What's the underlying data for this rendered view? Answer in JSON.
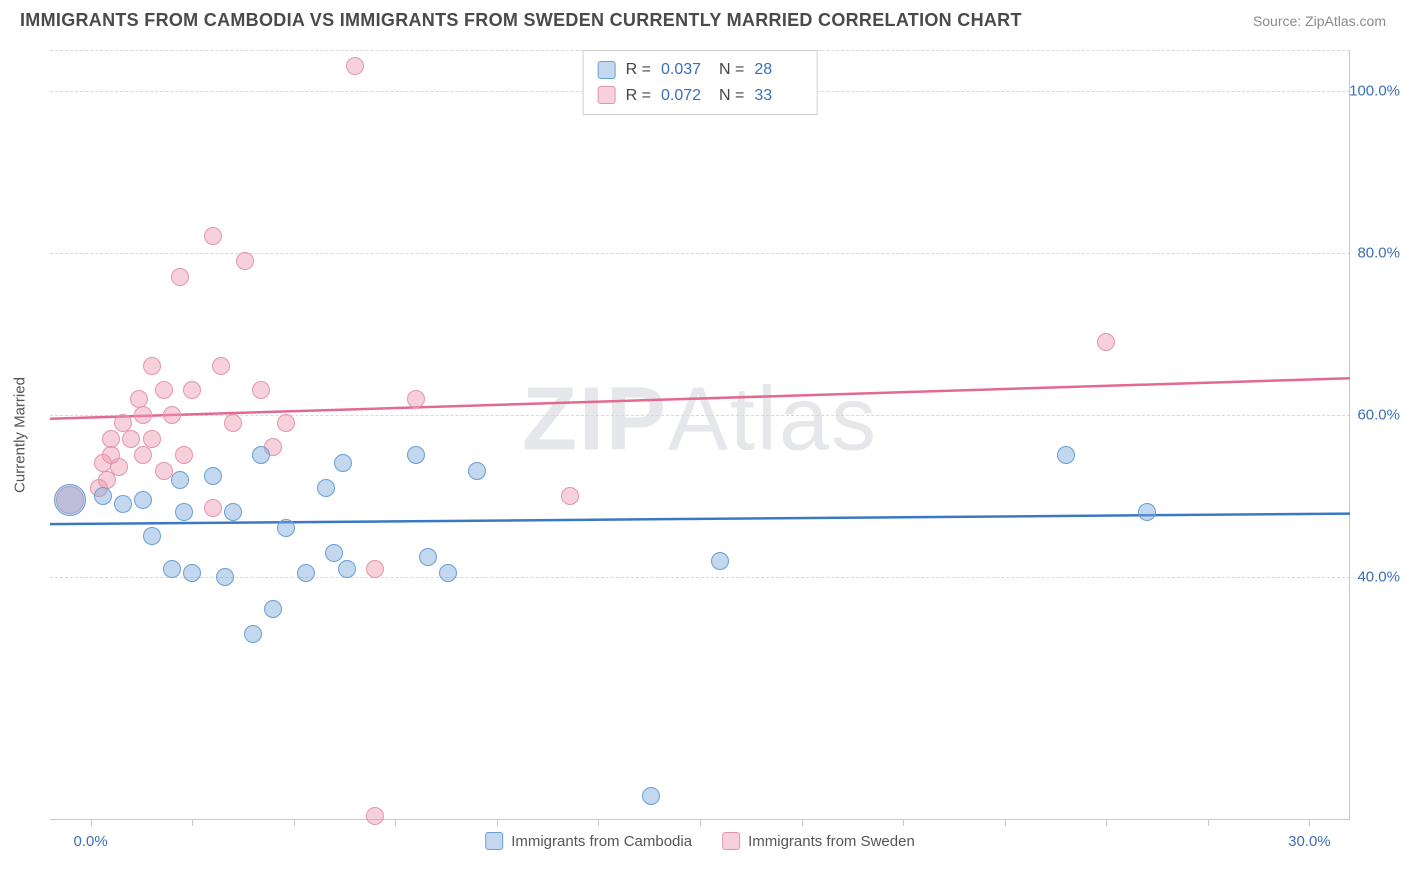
{
  "title": "IMMIGRANTS FROM CAMBODIA VS IMMIGRANTS FROM SWEDEN CURRENTLY MARRIED CORRELATION CHART",
  "source": "Source: ZipAtlas.com",
  "watermark": {
    "bold": "ZIP",
    "rest": "Atlas"
  },
  "y_axis": {
    "label": "Currently Married",
    "min": 10,
    "max": 105,
    "ticks": [
      {
        "value": 100,
        "label": "100.0%"
      },
      {
        "value": 80,
        "label": "80.0%"
      },
      {
        "value": 60,
        "label": "60.0%"
      },
      {
        "value": 40,
        "label": "40.0%"
      }
    ],
    "gridlines": [
      105,
      100,
      80,
      60,
      40
    ]
  },
  "x_axis": {
    "min": -1,
    "max": 31,
    "ticks": [
      {
        "value": 0,
        "label": "0.0%"
      },
      {
        "value": 30,
        "label": "30.0%"
      }
    ],
    "minor_ticks": [
      0,
      2.5,
      5,
      7.5,
      10,
      12.5,
      15,
      17.5,
      20,
      22.5,
      25,
      27.5,
      30
    ]
  },
  "series": {
    "cambodia": {
      "label": "Immigrants from Cambodia",
      "fill": "rgba(123,167,217,0.45)",
      "stroke": "#6a9fd4",
      "trend_color": "#3b78c4",
      "R": "0.037",
      "N": "28",
      "marker_r": 9,
      "trend": {
        "y_at_xmin": 46.5,
        "y_at_xmax": 47.8
      },
      "points": [
        {
          "x": -0.5,
          "y": 49.5,
          "r": 16
        },
        {
          "x": 0.3,
          "y": 50
        },
        {
          "x": 0.8,
          "y": 49
        },
        {
          "x": 1.3,
          "y": 49.5
        },
        {
          "x": 1.5,
          "y": 45
        },
        {
          "x": 2.0,
          "y": 41
        },
        {
          "x": 2.5,
          "y": 40.5
        },
        {
          "x": 2.3,
          "y": 48
        },
        {
          "x": 2.2,
          "y": 52
        },
        {
          "x": 3.0,
          "y": 52.5
        },
        {
          "x": 3.5,
          "y": 48
        },
        {
          "x": 3.3,
          "y": 40
        },
        {
          "x": 4.0,
          "y": 33
        },
        {
          "x": 4.2,
          "y": 55
        },
        {
          "x": 4.5,
          "y": 36
        },
        {
          "x": 4.8,
          "y": 46
        },
        {
          "x": 5.3,
          "y": 40.5
        },
        {
          "x": 5.8,
          "y": 51
        },
        {
          "x": 6.0,
          "y": 43
        },
        {
          "x": 6.3,
          "y": 41
        },
        {
          "x": 6.2,
          "y": 54
        },
        {
          "x": 8.0,
          "y": 55
        },
        {
          "x": 8.3,
          "y": 42.5
        },
        {
          "x": 8.8,
          "y": 40.5
        },
        {
          "x": 9.5,
          "y": 53
        },
        {
          "x": 13.8,
          "y": 13
        },
        {
          "x": 15.5,
          "y": 42
        },
        {
          "x": 24.0,
          "y": 55
        },
        {
          "x": 26.0,
          "y": 48
        }
      ]
    },
    "sweden": {
      "label": "Immigrants from Sweden",
      "fill": "rgba(235,150,175,0.45)",
      "stroke": "#e495ae",
      "trend_color": "#e26a8f",
      "R": "0.072",
      "N": "33",
      "marker_r": 9,
      "trend": {
        "y_at_xmin": 59.5,
        "y_at_xmax": 64.5
      },
      "points": [
        {
          "x": -0.5,
          "y": 49.5,
          "r": 14
        },
        {
          "x": 0.2,
          "y": 51
        },
        {
          "x": 0.3,
          "y": 54
        },
        {
          "x": 0.4,
          "y": 52
        },
        {
          "x": 0.5,
          "y": 55
        },
        {
          "x": 0.5,
          "y": 57
        },
        {
          "x": 0.7,
          "y": 53.5
        },
        {
          "x": 0.8,
          "y": 59
        },
        {
          "x": 1.0,
          "y": 57
        },
        {
          "x": 1.2,
          "y": 62
        },
        {
          "x": 1.3,
          "y": 55
        },
        {
          "x": 1.3,
          "y": 60
        },
        {
          "x": 1.5,
          "y": 66
        },
        {
          "x": 1.5,
          "y": 57
        },
        {
          "x": 1.8,
          "y": 63
        },
        {
          "x": 1.8,
          "y": 53
        },
        {
          "x": 2.0,
          "y": 60
        },
        {
          "x": 2.2,
          "y": 77
        },
        {
          "x": 2.3,
          "y": 55
        },
        {
          "x": 2.5,
          "y": 63
        },
        {
          "x": 3.0,
          "y": 82
        },
        {
          "x": 3.0,
          "y": 48.5
        },
        {
          "x": 3.2,
          "y": 66
        },
        {
          "x": 3.5,
          "y": 59
        },
        {
          "x": 3.8,
          "y": 79
        },
        {
          "x": 4.2,
          "y": 63
        },
        {
          "x": 4.5,
          "y": 56
        },
        {
          "x": 4.8,
          "y": 59
        },
        {
          "x": 6.5,
          "y": 103
        },
        {
          "x": 7.0,
          "y": 10.5
        },
        {
          "x": 7.0,
          "y": 41
        },
        {
          "x": 8.0,
          "y": 62
        },
        {
          "x": 11.8,
          "y": 50
        },
        {
          "x": 25.0,
          "y": 69
        }
      ]
    }
  },
  "colors": {
    "title": "#4a4a4a",
    "axis_value": "#3b6fb6",
    "grid": "#d8d8d8"
  }
}
